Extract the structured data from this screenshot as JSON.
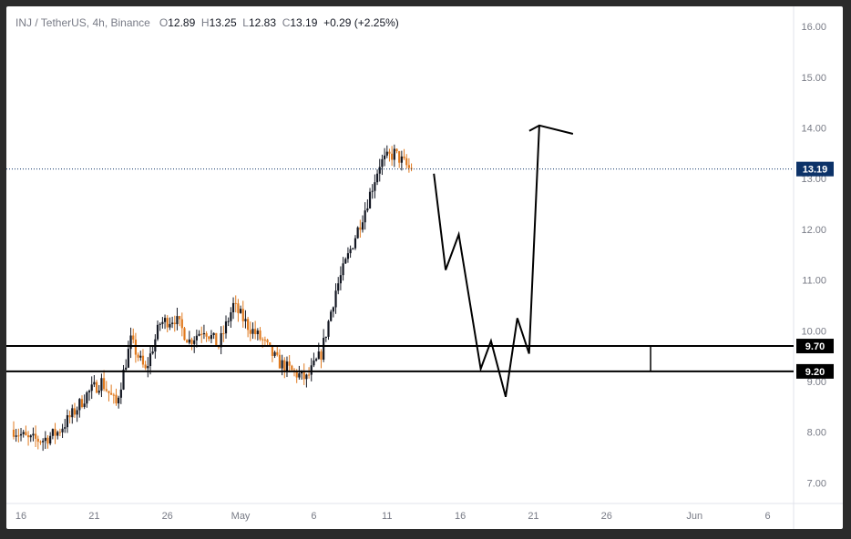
{
  "header": {
    "symbol": "INJ / TetherUS, 4h, Binance",
    "o_label": "O",
    "o_value": "12.89",
    "h_label": "H",
    "h_value": "13.25",
    "l_label": "L",
    "l_value": "12.83",
    "c_label": "C",
    "c_value": "13.19",
    "change": "+0.29 (+2.25%)"
  },
  "colors": {
    "up": "#131722",
    "down": "#e07a1f",
    "price_tag": "#0c3268",
    "level_tag": "#000000",
    "line": "#000000"
  },
  "price_tag": "13.19",
  "levels": [
    {
      "label": "9.70",
      "value": 9.7
    },
    {
      "label": "9.20",
      "value": 9.2
    }
  ],
  "chart_data": {
    "type": "candlestick",
    "title": "",
    "ylim": [
      6.4,
      16.2
    ],
    "y_ticks": [
      "7.00",
      "8.00",
      "9.00",
      "10.00",
      "11.00",
      "12.00",
      "13.00",
      "14.00",
      "15.00",
      "16.00"
    ],
    "x_ticks": [
      {
        "label": "16",
        "day": 0
      },
      {
        "label": "21",
        "day": 5
      },
      {
        "label": "26",
        "day": 10
      },
      {
        "label": "May",
        "day": 15
      },
      {
        "label": "6",
        "day": 20
      },
      {
        "label": "11",
        "day": 25
      },
      {
        "label": "16",
        "day": 30
      },
      {
        "label": "21",
        "day": 35
      },
      {
        "label": "26",
        "day": 40
      },
      {
        "label": "Jun",
        "day": 46
      },
      {
        "label": "6",
        "day": 51
      }
    ],
    "price_path_days": [
      0,
      1,
      2,
      3,
      4,
      5,
      6,
      7,
      8,
      9,
      10,
      11,
      12,
      13,
      14,
      15,
      16,
      17,
      18,
      19,
      20,
      21,
      22,
      23,
      24,
      25,
      26,
      27
    ],
    "price_path": [
      8.05,
      7.85,
      7.85,
      8.0,
      8.35,
      8.75,
      9.0,
      8.55,
      9.8,
      9.2,
      10.15,
      10.25,
      9.8,
      10.05,
      9.7,
      10.5,
      10.1,
      9.8,
      9.4,
      9.2,
      9.05,
      9.55,
      10.8,
      11.6,
      12.4,
      13.3,
      13.5,
      13.2
    ],
    "last_close": 13.19,
    "projection_days": [
      28.7,
      29.5,
      30.4,
      31.9,
      32.6,
      33.6,
      34.4,
      35.2,
      35.9,
      37.6
    ],
    "projection_values": [
      13.1,
      11.2,
      11.9,
      9.25,
      9.8,
      8.7,
      10.25,
      9.55,
      14.05,
      13.85
    ],
    "projection_arrow_from": [
      38.2,
      14.1
    ],
    "range_box_end_day": 43.5
  }
}
